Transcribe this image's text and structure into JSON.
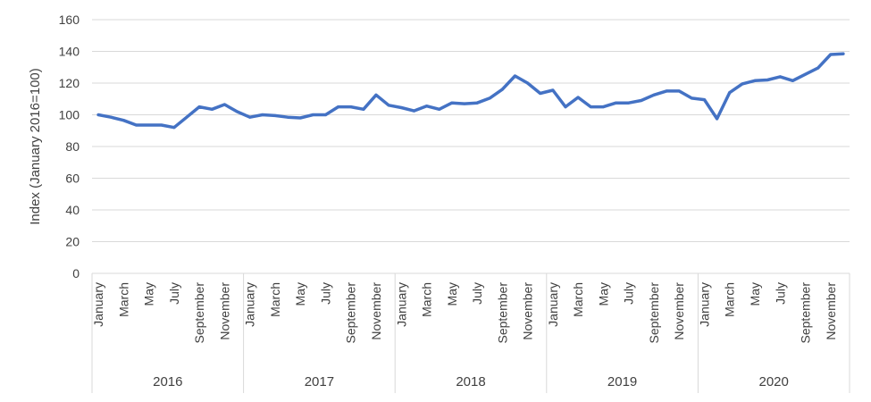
{
  "chart_data": {
    "type": "line",
    "title": "",
    "xlabel": "",
    "ylabel": "Index (January 2016=100)",
    "ylim": [
      0,
      160
    ],
    "yticks": [
      0,
      20,
      40,
      60,
      80,
      100,
      120,
      140,
      160
    ],
    "grid": true,
    "legend": "none",
    "month_tick_labels": [
      "January",
      "March",
      "May",
      "July",
      "September",
      "November"
    ],
    "years": [
      "2016",
      "2017",
      "2018",
      "2019",
      "2020"
    ],
    "series": [
      {
        "color": "#4472C4",
        "values": [
          100,
          98.5,
          96.5,
          93.5,
          93.5,
          93.5,
          92,
          98.5,
          105,
          103.5,
          106.5,
          102,
          98.5,
          100,
          99.5,
          98.5,
          98,
          100,
          100,
          105,
          105,
          103.5,
          112.5,
          106,
          104.5,
          102.5,
          105.5,
          103.5,
          107.5,
          107,
          107.5,
          110.5,
          116,
          124.5,
          120,
          113.5,
          115.5,
          105,
          111,
          105,
          105,
          107.5,
          107.5,
          109,
          112.5,
          115,
          115,
          110.5,
          109.5,
          97.5,
          114,
          119.5,
          121.5,
          122,
          124,
          121.5,
          125.5,
          129.5,
          138,
          138.5
        ]
      }
    ]
  }
}
